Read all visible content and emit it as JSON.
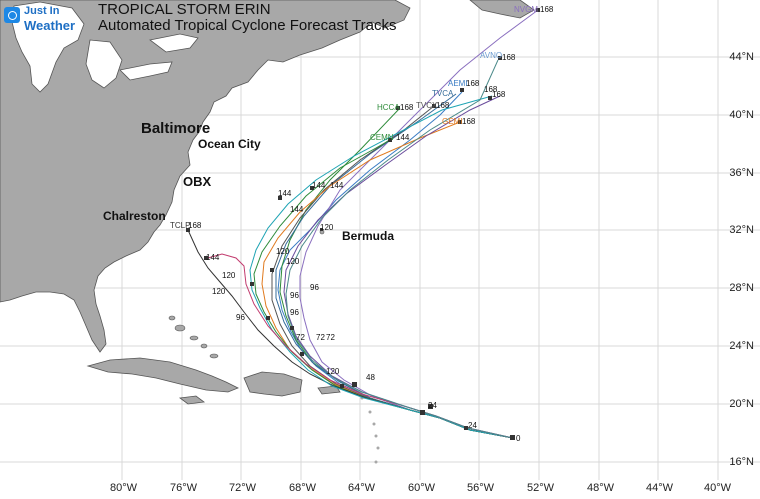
{
  "header": {
    "logo_line1": "Just In",
    "logo_line2": "Weather",
    "title": "TROPICAL STORM ERIN",
    "subtitle": "Automated Tropical Cyclone Forecast Tracks"
  },
  "places": {
    "baltimore": "Baltimore",
    "ocean_city": "Ocean City",
    "obx": "OBX",
    "charleston": "Chalreston",
    "bermuda": "Bermuda"
  },
  "lat_labels": [
    "44°N",
    "40°N",
    "36°N",
    "32°N",
    "28°N",
    "24°N",
    "20°N",
    "16°N"
  ],
  "lon_labels": [
    "80°W",
    "76°W",
    "72°W",
    "68°W",
    "64°W",
    "60°W",
    "56°W",
    "52°W",
    "48°W",
    "44°W",
    "40°W"
  ],
  "models": {
    "hcca": "HCCA",
    "aemi": "AEMI",
    "tvca": "TVCA",
    "tvcx": "TVCX",
    "gem": "GEMI",
    "cemn": "CEMN",
    "tclp": "TCLP",
    "avno": "AVNO",
    "nvgm": "NVGM"
  },
  "hour_labels": {
    "h168": "168",
    "h144": "144",
    "h120": "120",
    "h96": "96",
    "h72": "72",
    "h48": "48",
    "h24": "24",
    "h0": "0"
  },
  "colors": {
    "ocean": "#ffffff",
    "land": "#a8a8a8",
    "coast": "#555555",
    "grid": "#d9d9d9",
    "logo": "#1e6fc4"
  },
  "tracks": [
    {
      "model": "aemi",
      "color": "#3a7cc4",
      "lat_end": 41.5,
      "lon_end": -57.3
    },
    {
      "model": "hcca",
      "color": "#2e8b3a",
      "lat_end": 39.9,
      "lon_end": -67.6
    },
    {
      "model": "tvca",
      "color": "#356c9a",
      "lat_end": 40.9,
      "lon_end": -59.5
    },
    {
      "model": "tvcx",
      "color": "#555555",
      "lat_end": 40.0,
      "lon_end": -63.0
    },
    {
      "model": "gem",
      "color": "#e07a1f",
      "lat_end": 39.3,
      "lon_end": -59.2
    },
    {
      "model": "cemn",
      "color": "#2e8b3a",
      "lat_end": 38.1,
      "lon_end": -64.5
    },
    {
      "model": "nvgm",
      "color": "#8a6fbf",
      "lat_end": 47.0,
      "lon_end": -52.0
    },
    {
      "model": "tclp",
      "color": "#333333",
      "lat_end": 32.4,
      "lon_end": -76.0
    }
  ]
}
